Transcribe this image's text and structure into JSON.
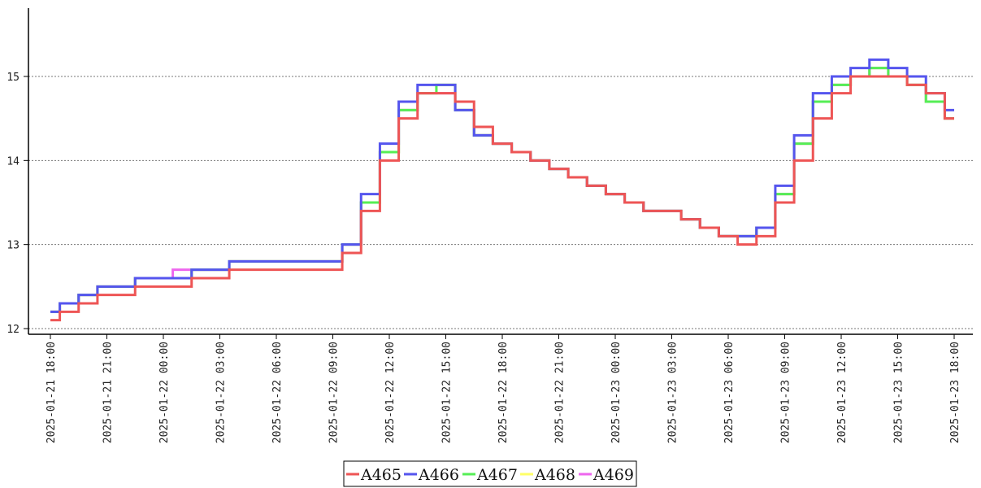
{
  "chart_data": {
    "type": "line",
    "step": true,
    "grid": {
      "y": true,
      "x": false,
      "style": "dotted"
    },
    "legend_position": "bottom-center",
    "xlim": [
      "2025-01-21 18:00",
      "2025-01-23 18:00"
    ],
    "ylim": [
      11.9,
      15.8
    ],
    "x_ticks": [
      "2025-01-21 18:00",
      "2025-01-21 21:00",
      "2025-01-22 00:00",
      "2025-01-22 03:00",
      "2025-01-22 06:00",
      "2025-01-22 09:00",
      "2025-01-22 12:00",
      "2025-01-22 15:00",
      "2025-01-22 18:00",
      "2025-01-22 21:00",
      "2025-01-23 00:00",
      "2025-01-23 03:00",
      "2025-01-23 06:00",
      "2025-01-23 09:00",
      "2025-01-23 12:00",
      "2025-01-23 15:00",
      "2025-01-23 18:00"
    ],
    "y_ticks": [
      12,
      13,
      14,
      15
    ],
    "x": [
      "2025-01-21 18:00",
      "2025-01-21 19:00",
      "2025-01-21 20:00",
      "2025-01-21 21:00",
      "2025-01-21 22:00",
      "2025-01-21 23:00",
      "2025-01-22 00:00",
      "2025-01-22 01:00",
      "2025-01-22 02:00",
      "2025-01-22 03:00",
      "2025-01-22 04:00",
      "2025-01-22 05:00",
      "2025-01-22 06:00",
      "2025-01-22 07:00",
      "2025-01-22 08:00",
      "2025-01-22 09:00",
      "2025-01-22 10:00",
      "2025-01-22 11:00",
      "2025-01-22 12:00",
      "2025-01-22 13:00",
      "2025-01-22 14:00",
      "2025-01-22 15:00",
      "2025-01-22 16:00",
      "2025-01-22 17:00",
      "2025-01-22 18:00",
      "2025-01-22 19:00",
      "2025-01-22 20:00",
      "2025-01-22 21:00",
      "2025-01-22 22:00",
      "2025-01-22 23:00",
      "2025-01-23 00:00",
      "2025-01-23 01:00",
      "2025-01-23 02:00",
      "2025-01-23 03:00",
      "2025-01-23 04:00",
      "2025-01-23 05:00",
      "2025-01-23 06:00",
      "2025-01-23 07:00",
      "2025-01-23 08:00",
      "2025-01-23 09:00",
      "2025-01-23 10:00",
      "2025-01-23 11:00",
      "2025-01-23 12:00",
      "2025-01-23 13:00",
      "2025-01-23 14:00",
      "2025-01-23 15:00",
      "2025-01-23 16:00",
      "2025-01-23 17:00",
      "2025-01-23 18:00"
    ],
    "series": [
      {
        "name": "A465",
        "color": "#ee5555",
        "values": [
          12.1,
          12.2,
          12.3,
          12.4,
          12.4,
          12.5,
          12.5,
          12.5,
          12.6,
          12.6,
          12.7,
          12.7,
          12.7,
          12.7,
          12.7,
          12.7,
          12.9,
          13.4,
          14.0,
          14.5,
          14.8,
          14.8,
          14.7,
          14.4,
          14.2,
          14.1,
          14.0,
          13.9,
          13.8,
          13.7,
          13.6,
          13.5,
          13.4,
          13.4,
          13.3,
          13.2,
          13.1,
          13.0,
          13.1,
          13.5,
          14.0,
          14.5,
          14.8,
          15.0,
          15.0,
          15.0,
          14.9,
          14.8,
          14.5
        ]
      },
      {
        "name": "A466",
        "color": "#5555ee",
        "values": [
          12.2,
          12.3,
          12.4,
          12.5,
          12.5,
          12.6,
          12.6,
          12.6,
          12.7,
          12.7,
          12.8,
          12.8,
          12.8,
          12.8,
          12.8,
          12.8,
          13.0,
          13.6,
          14.2,
          14.7,
          14.9,
          14.9,
          14.6,
          14.3,
          14.2,
          14.1,
          14.0,
          13.9,
          13.8,
          13.7,
          13.6,
          13.5,
          13.4,
          13.4,
          13.3,
          13.2,
          13.1,
          13.1,
          13.2,
          13.7,
          14.3,
          14.8,
          15.0,
          15.1,
          15.2,
          15.1,
          15.0,
          14.8,
          14.6
        ]
      },
      {
        "name": "A467",
        "color": "#55ee55",
        "values": [
          12.2,
          12.3,
          12.4,
          12.5,
          12.5,
          12.6,
          12.6,
          12.6,
          12.7,
          12.7,
          12.8,
          12.8,
          12.8,
          12.8,
          12.8,
          12.8,
          13.0,
          13.5,
          14.1,
          14.6,
          14.8,
          14.9,
          14.6,
          14.3,
          14.2,
          14.1,
          14.0,
          13.9,
          13.8,
          13.7,
          13.6,
          13.5,
          13.4,
          13.4,
          13.3,
          13.2,
          13.1,
          13.1,
          13.2,
          13.6,
          14.2,
          14.7,
          14.9,
          15.0,
          15.1,
          15.0,
          14.9,
          14.7,
          14.5
        ]
      },
      {
        "name": "A468",
        "color": "#ffff66",
        "values": [
          12.2,
          12.3,
          12.4,
          12.5,
          12.5,
          12.6,
          12.6,
          12.6,
          12.7,
          12.7,
          12.8,
          12.8,
          12.8,
          12.8,
          12.8,
          12.8,
          13.0,
          13.5,
          14.1,
          14.6,
          14.8,
          14.9,
          14.6,
          14.3,
          14.2,
          14.1,
          14.0,
          13.9,
          13.8,
          13.7,
          13.6,
          13.5,
          13.4,
          13.4,
          13.3,
          13.2,
          13.1,
          13.1,
          13.2,
          13.6,
          14.2,
          14.7,
          14.9,
          15.0,
          15.1,
          15.0,
          14.9,
          14.7,
          14.5
        ]
      },
      {
        "name": "A469",
        "color": "#ee66ee",
        "values": [
          12.2,
          12.3,
          12.4,
          12.5,
          12.5,
          12.6,
          12.6,
          12.7,
          12.7,
          12.7,
          12.8,
          12.8,
          12.8,
          12.8,
          12.8,
          12.8,
          13.0,
          13.5,
          14.1,
          14.6,
          14.8,
          14.8,
          14.6,
          14.3,
          14.2,
          14.1,
          14.0,
          13.9,
          13.8,
          13.7,
          13.6,
          13.5,
          13.4,
          13.4,
          13.3,
          13.2,
          13.1,
          13.1,
          13.2,
          13.6,
          14.2,
          14.7,
          14.9,
          15.0,
          15.1,
          15.0,
          14.9,
          14.7,
          14.5
        ]
      }
    ]
  }
}
